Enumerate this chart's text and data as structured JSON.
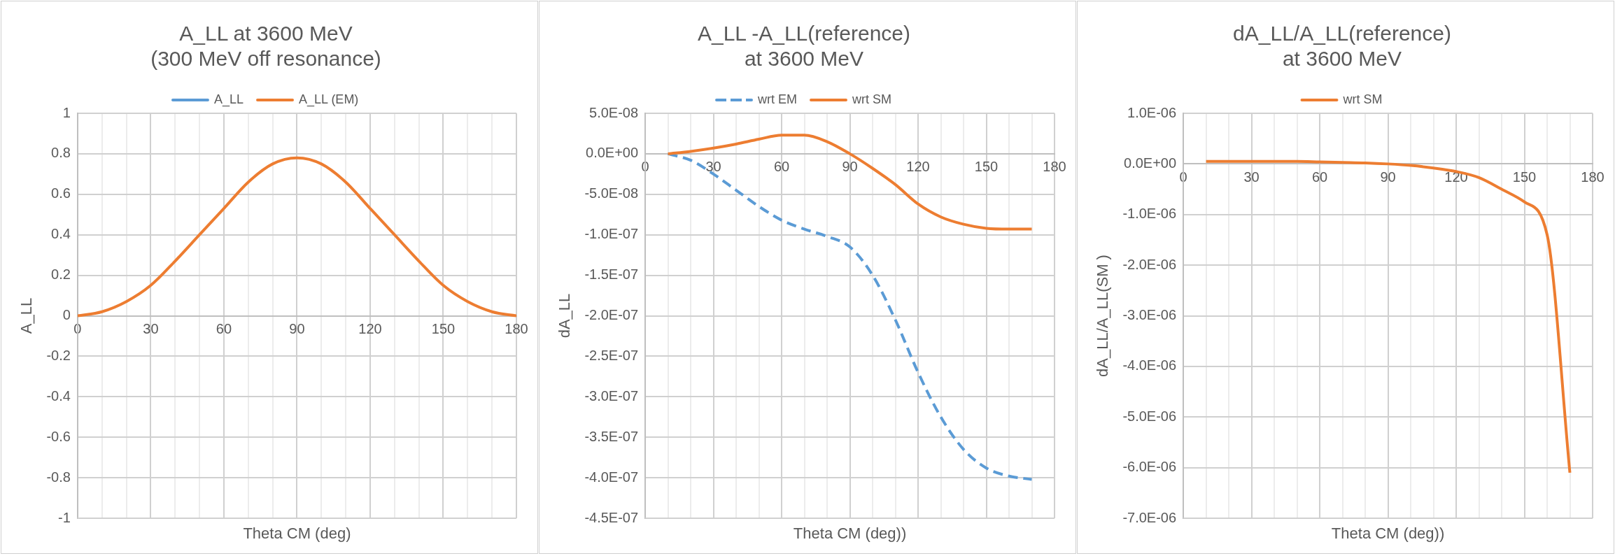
{
  "chart_data": [
    {
      "type": "line",
      "title": [
        "A_LL at 3600 MeV",
        "(300 MeV off resonance)"
      ],
      "xlabel": "Theta CM (deg)",
      "ylabel": "A_LL",
      "x": [
        0,
        10,
        20,
        30,
        40,
        50,
        60,
        70,
        80,
        90,
        100,
        110,
        120,
        130,
        140,
        150,
        160,
        170,
        180
      ],
      "series": [
        {
          "name": "A_LL",
          "color": "#5b9bd5",
          "line_style": "solid",
          "values": [
            null,
            null,
            null,
            null,
            null,
            null,
            null,
            null,
            null,
            null,
            null,
            null,
            null,
            null,
            null,
            null,
            null,
            null,
            null
          ]
        },
        {
          "name": "A_LL (EM)",
          "color": "#ed7d31",
          "line_style": "solid",
          "values": [
            0,
            0.02,
            0.07,
            0.15,
            0.27,
            0.4,
            0.53,
            0.66,
            0.75,
            0.78,
            0.75,
            0.66,
            0.53,
            0.4,
            0.27,
            0.15,
            0.07,
            0.02,
            0
          ]
        }
      ],
      "xlim": [
        0,
        180
      ],
      "xticks": [
        0,
        {
          "value": 10,
          "label": null
        },
        {
          "value": 20,
          "label": null
        },
        30,
        {
          "value": 40,
          "label": null
        },
        {
          "value": 50,
          "label": null
        },
        60,
        {
          "value": 70,
          "label": null
        },
        {
          "value": 80,
          "label": null
        },
        90,
        {
          "value": 100,
          "label": null
        },
        {
          "value": 110,
          "label": null
        },
        120,
        {
          "value": 130,
          "label": null
        },
        {
          "value": 140,
          "label": null
        },
        150,
        {
          "value": 160,
          "label": null
        },
        {
          "value": 170,
          "label": null
        },
        180
      ],
      "ylim": [
        -1,
        1
      ],
      "yticks": [
        -1,
        -0.8,
        -0.6,
        -0.4,
        -0.2,
        0,
        0.2,
        0.4,
        0.6,
        0.8,
        1
      ],
      "grid": true,
      "legend": "top",
      "marker": "none"
    },
    {
      "type": "line",
      "title": [
        "A_LL -A_LL(reference)",
        "at 3600 MeV"
      ],
      "xlabel": "Theta CM (deg))",
      "ylabel": "dA_LL",
      "x": [
        10,
        20,
        30,
        40,
        50,
        60,
        70,
        80,
        90,
        100,
        110,
        120,
        130,
        140,
        150,
        160,
        170
      ],
      "series": [
        {
          "name": "wrt EM",
          "color": "#5b9bd5",
          "line_style": "dashed",
          "values": [
            0,
            -8e-09,
            -2.5e-08,
            -4.5e-08,
            -6.5e-08,
            -8.2e-08,
            -9.3e-08,
            -1.02e-07,
            -1.15e-07,
            -1.5e-07,
            -2.05e-07,
            -2.7e-07,
            -3.25e-07,
            -3.65e-07,
            -3.88e-07,
            -3.98e-07,
            -4.02e-07
          ]
        },
        {
          "name": "wrt SM",
          "color": "#ed7d31",
          "line_style": "solid",
          "values": [
            0,
            3e-09,
            7e-09,
            1.2e-08,
            1.8e-08,
            2.3e-08,
            2.3e-08,
            1.5e-08,
            0,
            -1.8e-08,
            -3.8e-08,
            -6.2e-08,
            -7.8e-08,
            -8.7e-08,
            -9.2e-08,
            -9.3e-08,
            -9.3e-08
          ]
        }
      ],
      "xlim": [
        0,
        180
      ],
      "xticks": [
        0,
        {
          "value": 10,
          "label": null
        },
        {
          "value": 20,
          "label": null
        },
        30,
        {
          "value": 40,
          "label": null
        },
        {
          "value": 50,
          "label": null
        },
        60,
        {
          "value": 70,
          "label": null
        },
        {
          "value": 80,
          "label": null
        },
        90,
        {
          "value": 100,
          "label": null
        },
        {
          "value": 110,
          "label": null
        },
        120,
        {
          "value": 130,
          "label": null
        },
        {
          "value": 140,
          "label": null
        },
        150,
        {
          "value": 160,
          "label": null
        },
        {
          "value": 170,
          "label": null
        },
        180
      ],
      "ylim": [
        -4.5e-07,
        5e-08
      ],
      "yticks": [
        {
          "value": -4.5e-07,
          "label": "-4.5E-07"
        },
        {
          "value": -4e-07,
          "label": "-4.0E-07"
        },
        {
          "value": -3.5e-07,
          "label": "-3.5E-07"
        },
        {
          "value": -3e-07,
          "label": "-3.0E-07"
        },
        {
          "value": -2.5e-07,
          "label": "-2.5E-07"
        },
        {
          "value": -2e-07,
          "label": "-2.0E-07"
        },
        {
          "value": -1.5e-07,
          "label": "-1.5E-07"
        },
        {
          "value": -1e-07,
          "label": "-1.0E-07"
        },
        {
          "value": -5e-08,
          "label": "-5.0E-08"
        },
        {
          "value": 0,
          "label": "0.0E+00"
        },
        {
          "value": 5e-08,
          "label": "5.0E-08"
        }
      ],
      "grid": true,
      "legend": "top",
      "marker": "none"
    },
    {
      "type": "line",
      "title": [
        "dA_LL/A_LL(reference)",
        "at 3600 MeV"
      ],
      "xlabel": "Theta CM (deg))",
      "ylabel": "dA_LL/A_LL(SM )",
      "x": [
        10,
        20,
        30,
        40,
        50,
        60,
        70,
        80,
        90,
        100,
        110,
        120,
        130,
        140,
        150,
        160,
        170
      ],
      "series": [
        {
          "name": "wrt SM",
          "color": "#ed7d31",
          "line_style": "solid",
          "values": [
            5e-08,
            5e-08,
            5e-08,
            5e-08,
            5e-08,
            4e-08,
            3e-08,
            2e-08,
            0,
            -3e-08,
            -8e-08,
            -1.5e-07,
            -2.7e-07,
            -5e-07,
            -7.5e-07,
            -1.4e-06,
            -6.1e-06
          ]
        }
      ],
      "xlim": [
        0,
        180
      ],
      "xticks": [
        0,
        {
          "value": 10,
          "label": null
        },
        {
          "value": 20,
          "label": null
        },
        30,
        {
          "value": 40,
          "label": null
        },
        {
          "value": 50,
          "label": null
        },
        60,
        {
          "value": 70,
          "label": null
        },
        {
          "value": 80,
          "label": null
        },
        90,
        {
          "value": 100,
          "label": null
        },
        {
          "value": 110,
          "label": null
        },
        120,
        {
          "value": 130,
          "label": null
        },
        {
          "value": 140,
          "label": null
        },
        150,
        {
          "value": 160,
          "label": null
        },
        {
          "value": 170,
          "label": null
        },
        180
      ],
      "ylim": [
        -7e-06,
        1e-06
      ],
      "yticks": [
        {
          "value": -7e-06,
          "label": "-7.0E-06"
        },
        {
          "value": -6e-06,
          "label": "-6.0E-06"
        },
        {
          "value": -5e-06,
          "label": "-5.0E-06"
        },
        {
          "value": -4e-06,
          "label": "-4.0E-06"
        },
        {
          "value": -3e-06,
          "label": "-3.0E-06"
        },
        {
          "value": -2e-06,
          "label": "-2.0E-06"
        },
        {
          "value": -1e-06,
          "label": "-1.0E-06"
        },
        {
          "value": 0,
          "label": "0.0E+00"
        },
        {
          "value": 1e-06,
          "label": "1.0E-06"
        }
      ],
      "grid": true,
      "legend": "top",
      "marker": "none"
    }
  ]
}
